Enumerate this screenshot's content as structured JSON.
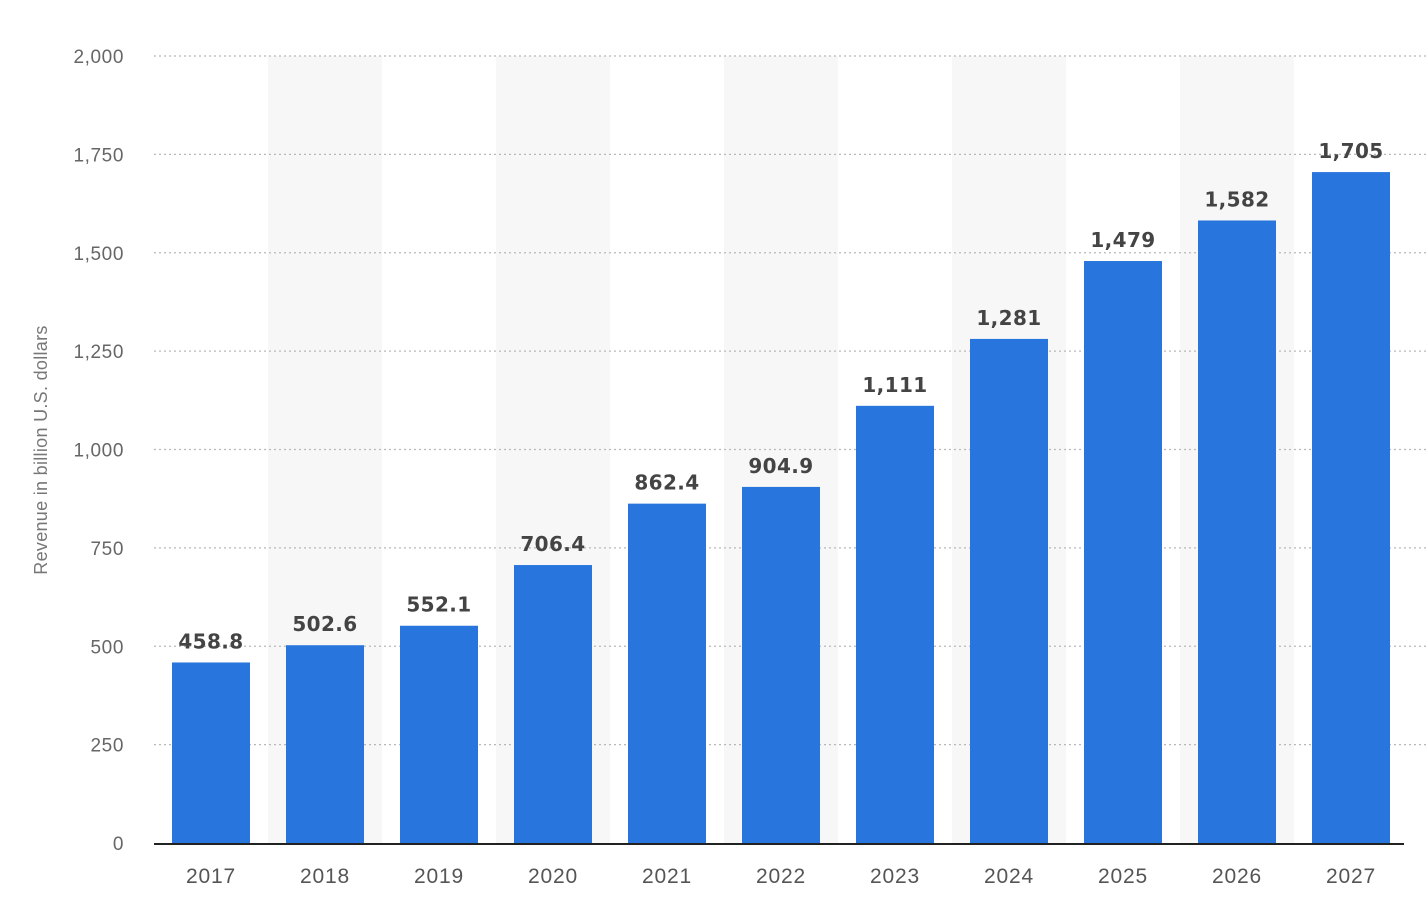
{
  "chart_data": {
    "type": "bar",
    "categories": [
      "2017",
      "2018",
      "2019",
      "2020",
      "2021",
      "2022",
      "2023",
      "2024",
      "2025",
      "2026",
      "2027"
    ],
    "values": [
      458.8,
      502.6,
      552.1,
      706.4,
      862.4,
      904.9,
      1111,
      1281,
      1479,
      1582,
      1705
    ],
    "value_labels": [
      "458.8",
      "502.6",
      "552.1",
      "706.4",
      "862.4",
      "904.9",
      "1,111",
      "1,281",
      "1,479",
      "1,582",
      "1,705"
    ],
    "ylabel": "Revenue in billion U.S. dollars",
    "xlabel": "",
    "ylim": [
      0,
      2000
    ],
    "y_ticks": [
      0,
      250,
      500,
      750,
      1000,
      1250,
      1500,
      1750,
      2000
    ],
    "y_tick_labels": [
      "0",
      "250",
      "500",
      "750",
      "1,000",
      "1,250",
      "1,500",
      "1,750",
      "2,000"
    ],
    "grid": true,
    "bar_color": "#2876dd",
    "band_color": "#f7f7f7"
  }
}
